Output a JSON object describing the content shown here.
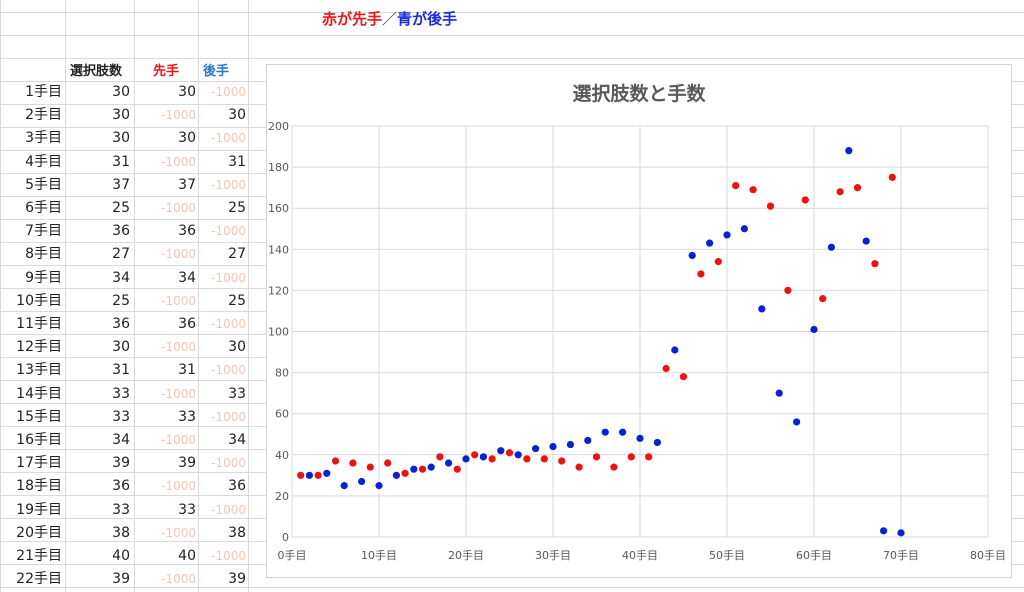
{
  "banner": {
    "red_part": "赤が先手",
    "separator": "／",
    "blue_part": "青が後手"
  },
  "table": {
    "headers": {
      "count": "選択肢数",
      "sente": "先手",
      "gote": "後手"
    },
    "header_colors": {
      "count": "#222222",
      "sente": "#e8161c",
      "gote": "#2e74c8"
    },
    "rows": [
      {
        "label": "1手目",
        "count": "30",
        "sente": "30",
        "gote": "-1000"
      },
      {
        "label": "2手目",
        "count": "30",
        "sente": "-1000",
        "gote": "30"
      },
      {
        "label": "3手目",
        "count": "30",
        "sente": "30",
        "gote": "-1000"
      },
      {
        "label": "4手目",
        "count": "31",
        "sente": "-1000",
        "gote": "31"
      },
      {
        "label": "5手目",
        "count": "37",
        "sente": "37",
        "gote": "-1000"
      },
      {
        "label": "6手目",
        "count": "25",
        "sente": "-1000",
        "gote": "25"
      },
      {
        "label": "7手目",
        "count": "36",
        "sente": "36",
        "gote": "-1000"
      },
      {
        "label": "8手目",
        "count": "27",
        "sente": "-1000",
        "gote": "27"
      },
      {
        "label": "9手目",
        "count": "34",
        "sente": "34",
        "gote": "-1000"
      },
      {
        "label": "10手目",
        "count": "25",
        "sente": "-1000",
        "gote": "25"
      },
      {
        "label": "11手目",
        "count": "36",
        "sente": "36",
        "gote": "-1000"
      },
      {
        "label": "12手目",
        "count": "30",
        "sente": "-1000",
        "gote": "30"
      },
      {
        "label": "13手目",
        "count": "31",
        "sente": "31",
        "gote": "-1000"
      },
      {
        "label": "14手目",
        "count": "33",
        "sente": "-1000",
        "gote": "33"
      },
      {
        "label": "15手目",
        "count": "33",
        "sente": "33",
        "gote": "-1000"
      },
      {
        "label": "16手目",
        "count": "34",
        "sente": "-1000",
        "gote": "34"
      },
      {
        "label": "17手目",
        "count": "39",
        "sente": "39",
        "gote": "-1000"
      },
      {
        "label": "18手目",
        "count": "36",
        "sente": "-1000",
        "gote": "36"
      },
      {
        "label": "19手目",
        "count": "33",
        "sente": "33",
        "gote": "-1000"
      },
      {
        "label": "20手目",
        "count": "38",
        "sente": "-1000",
        "gote": "38"
      },
      {
        "label": "21手目",
        "count": "40",
        "sente": "40",
        "gote": "-1000"
      },
      {
        "label": "22手目",
        "count": "39",
        "sente": "-1000",
        "gote": "39"
      }
    ]
  },
  "chart_data": {
    "type": "scatter",
    "title": "選択肢数と手数",
    "xlim": [
      0,
      80
    ],
    "ylim": [
      0,
      200
    ],
    "x_ticks": [
      0,
      10,
      20,
      30,
      40,
      50,
      60,
      70,
      80
    ],
    "x_tick_labels": [
      "0手目",
      "10手目",
      "20手目",
      "30手目",
      "40手目",
      "50手目",
      "60手目",
      "70手目",
      "80手目"
    ],
    "y_ticks": [
      0,
      20,
      40,
      60,
      80,
      100,
      120,
      140,
      160,
      180,
      200
    ],
    "y_tick_labels": [
      "0",
      "20",
      "40",
      "60",
      "80",
      "100",
      "120",
      "140",
      "160",
      "180",
      "200"
    ],
    "grid": true,
    "series": [
      {
        "color": "#ee1111",
        "x": [
          1,
          3,
          5,
          7,
          9,
          11,
          13,
          15,
          17,
          19,
          21,
          23,
          25,
          27,
          29,
          31,
          33,
          35,
          37,
          39,
          41,
          43,
          45,
          47,
          49,
          51,
          53,
          55,
          57,
          59,
          61,
          63,
          65,
          67,
          69
        ],
        "y": [
          30,
          30,
          37,
          36,
          34,
          36,
          31,
          33,
          39,
          33,
          40,
          38,
          41,
          38,
          38,
          37,
          34,
          39,
          34,
          39,
          39,
          82,
          78,
          128,
          134,
          171,
          169,
          161,
          120,
          164,
          116,
          168,
          170,
          133,
          175
        ]
      },
      {
        "color": "#0a1fd6",
        "x": [
          2,
          4,
          6,
          8,
          10,
          12,
          14,
          16,
          18,
          20,
          22,
          24,
          26,
          28,
          30,
          32,
          34,
          36,
          38,
          40,
          42,
          44,
          46,
          48,
          50,
          52,
          54,
          56,
          58,
          60,
          62,
          64,
          66,
          68,
          70
        ],
        "y": [
          30,
          31,
          25,
          27,
          25,
          30,
          33,
          34,
          36,
          38,
          39,
          42,
          40,
          43,
          44,
          45,
          47,
          51,
          51,
          48,
          46,
          91,
          137,
          143,
          147,
          150,
          111,
          70,
          56,
          101,
          141,
          188,
          144,
          3,
          2
        ]
      }
    ]
  }
}
